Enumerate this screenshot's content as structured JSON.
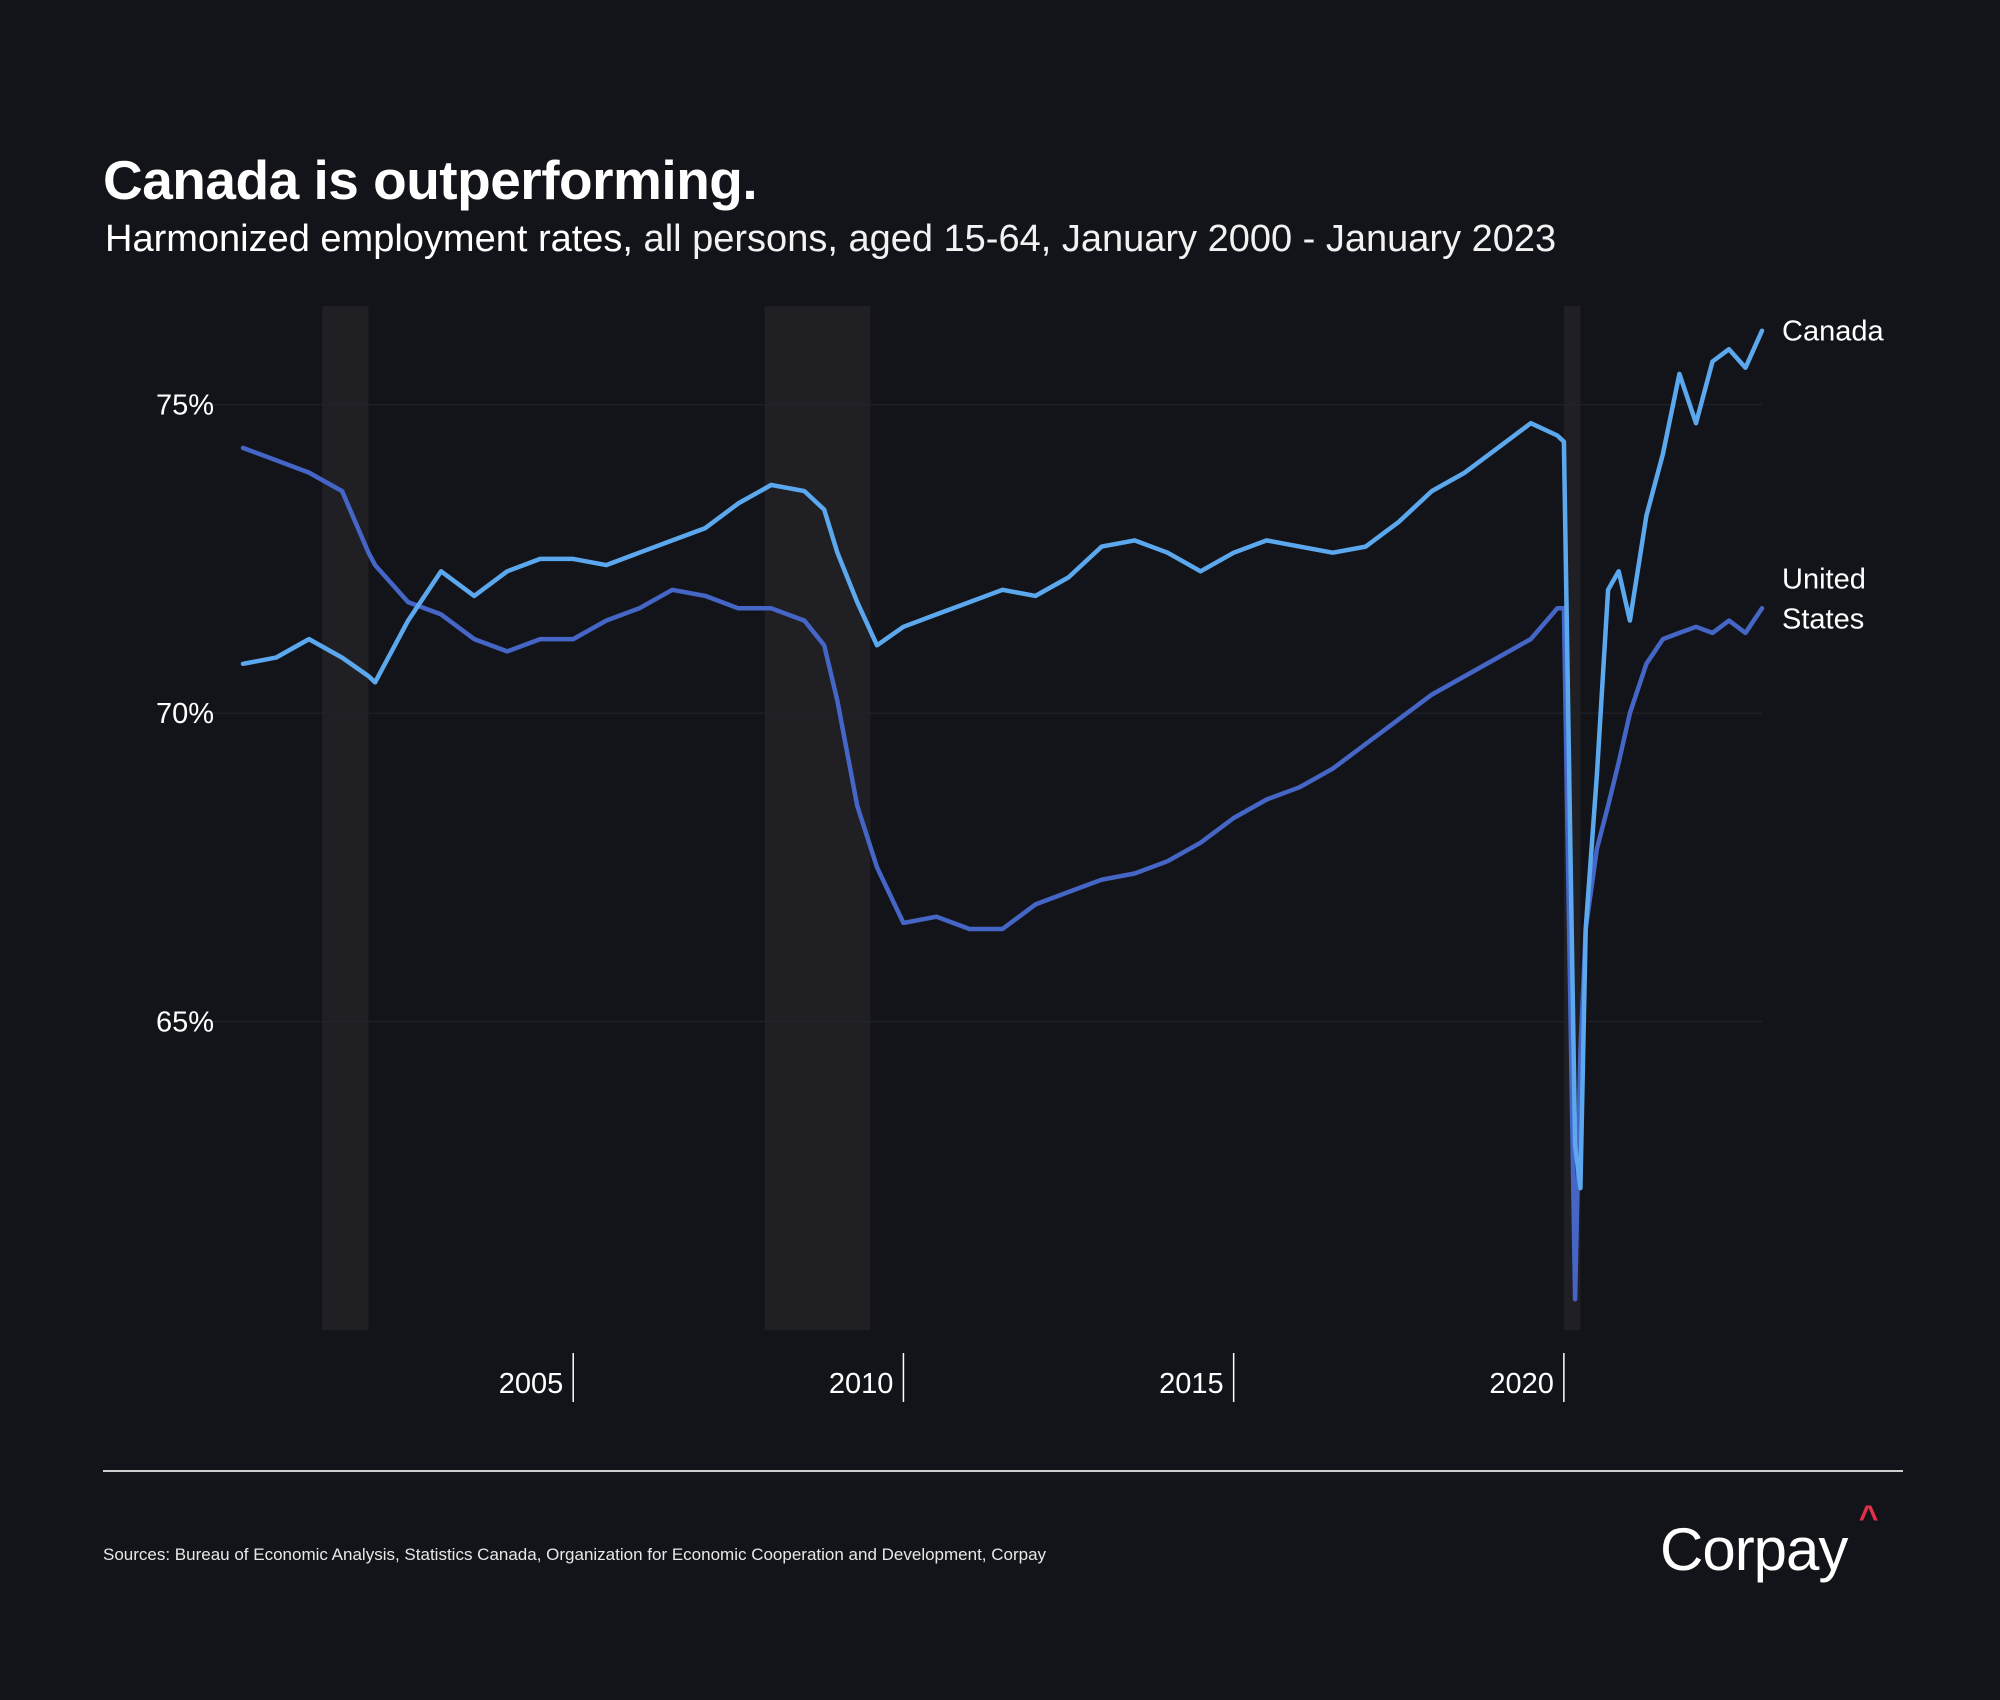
{
  "header": {
    "title": "Canada is outperforming.",
    "subtitle_bold": "Harmonized employment rates,",
    "subtitle_rest": " all persons, aged 15-64, January 2000 - January 2023"
  },
  "footer": {
    "source": "Sources: Bureau of Economic Analysis, Statistics Canada, Organization for Economic Cooperation and Development, Corpay",
    "logo_text": "Corpay",
    "logo_mark": "^"
  },
  "colors": {
    "background": "#121419",
    "canada": "#5ca8ee",
    "us": "#4566c6",
    "recession": "#1f1f24",
    "logo_accent": "#e0304a"
  },
  "chart_data": {
    "type": "line",
    "title": "Canada is outperforming.",
    "xlabel": "",
    "ylabel": "",
    "xlim": [
      2000.0,
      2023.0
    ],
    "ylim": [
      60.0,
      76.6
    ],
    "y_ticks": [
      65,
      70,
      75
    ],
    "y_tick_labels": [
      "65%",
      "70%",
      "75%"
    ],
    "x_ticks": [
      2005,
      2010,
      2015,
      2020
    ],
    "x_tick_labels": [
      "2005",
      "2010",
      "2015",
      "2020"
    ],
    "recession_bands": [
      [
        2001.2,
        2001.9
      ],
      [
        2007.9,
        2009.5
      ],
      [
        2020.0,
        2020.25
      ]
    ],
    "series": [
      {
        "name": "Canada",
        "label_lines": [
          "Canada"
        ],
        "x": [
          2000.0,
          2000.5,
          2001.0,
          2001.5,
          2001.9,
          2002.0,
          2002.5,
          2003.0,
          2003.5,
          2004.0,
          2004.5,
          2005.0,
          2005.5,
          2006.0,
          2006.5,
          2007.0,
          2007.5,
          2008.0,
          2008.5,
          2008.8,
          2009.0,
          2009.3,
          2009.6,
          2010.0,
          2010.5,
          2011.0,
          2011.5,
          2012.0,
          2012.5,
          2013.0,
          2013.5,
          2014.0,
          2014.5,
          2015.0,
          2015.5,
          2016.0,
          2016.5,
          2017.0,
          2017.5,
          2018.0,
          2018.5,
          2019.0,
          2019.5,
          2019.9,
          2020.0,
          2020.17,
          2020.25,
          2020.33,
          2020.5,
          2020.67,
          2020.83,
          2021.0,
          2021.25,
          2021.5,
          2021.75,
          2022.0,
          2022.25,
          2022.5,
          2022.75,
          2023.0
        ],
        "values": [
          70.8,
          70.9,
          71.2,
          70.9,
          70.6,
          70.5,
          71.5,
          72.3,
          71.9,
          72.3,
          72.5,
          72.5,
          72.4,
          72.6,
          72.8,
          73.0,
          73.4,
          73.7,
          73.6,
          73.3,
          72.6,
          71.8,
          71.1,
          71.4,
          71.6,
          71.8,
          72.0,
          71.9,
          72.2,
          72.7,
          72.8,
          72.6,
          72.3,
          72.6,
          72.8,
          72.7,
          72.6,
          72.7,
          73.1,
          73.6,
          73.9,
          74.3,
          74.7,
          74.5,
          74.4,
          63.0,
          62.3,
          66.5,
          69.0,
          72.0,
          72.3,
          71.5,
          73.2,
          74.2,
          75.5,
          74.7,
          75.7,
          75.9,
          75.6,
          76.2
        ]
      },
      {
        "name": "United States",
        "label_lines": [
          "United",
          "States"
        ],
        "x": [
          2000.0,
          2000.5,
          2001.0,
          2001.5,
          2001.9,
          2002.0,
          2002.5,
          2003.0,
          2003.5,
          2004.0,
          2004.5,
          2005.0,
          2005.5,
          2006.0,
          2006.5,
          2007.0,
          2007.5,
          2008.0,
          2008.5,
          2008.8,
          2009.0,
          2009.3,
          2009.6,
          2010.0,
          2010.5,
          2011.0,
          2011.5,
          2012.0,
          2012.5,
          2013.0,
          2013.5,
          2014.0,
          2014.5,
          2015.0,
          2015.5,
          2016.0,
          2016.5,
          2017.0,
          2017.5,
          2018.0,
          2018.5,
          2019.0,
          2019.5,
          2019.9,
          2020.0,
          2020.17,
          2020.25,
          2020.33,
          2020.5,
          2020.67,
          2020.83,
          2021.0,
          2021.25,
          2021.5,
          2021.75,
          2022.0,
          2022.25,
          2022.5,
          2022.75,
          2023.0
        ],
        "values": [
          74.3,
          74.1,
          73.9,
          73.6,
          72.6,
          72.4,
          71.8,
          71.6,
          71.2,
          71.0,
          71.2,
          71.2,
          71.5,
          71.7,
          72.0,
          71.9,
          71.7,
          71.7,
          71.5,
          71.1,
          70.2,
          68.5,
          67.5,
          66.6,
          66.7,
          66.5,
          66.5,
          66.9,
          67.1,
          67.3,
          67.4,
          67.6,
          67.9,
          68.3,
          68.6,
          68.8,
          69.1,
          69.5,
          69.9,
          70.3,
          70.6,
          70.9,
          71.2,
          71.7,
          71.7,
          60.5,
          64.5,
          66.5,
          67.8,
          68.5,
          69.2,
          70.0,
          70.8,
          71.2,
          71.3,
          71.4,
          71.3,
          71.5,
          71.3,
          71.7
        ]
      }
    ]
  }
}
